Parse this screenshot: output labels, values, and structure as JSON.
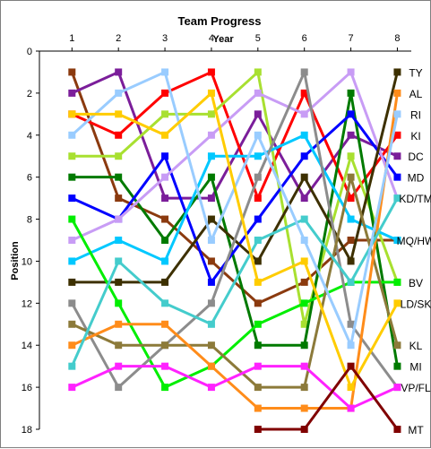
{
  "chart_data": {
    "type": "line",
    "title": "Team Progress",
    "xlabel": "Year",
    "ylabel": "Position",
    "x": [
      1,
      2,
      3,
      4,
      5,
      6,
      7,
      8
    ],
    "xlim": [
      0.3,
      8.3
    ],
    "ylim": [
      0,
      18
    ],
    "y_inverted": true,
    "yticks": [
      0,
      2,
      4,
      6,
      8,
      10,
      12,
      14,
      16,
      18
    ],
    "grid": false,
    "series_colors": {
      "dark-brown": "#8b3a0f",
      "purple": "#7b1e9a",
      "red": "#ff0000",
      "light-green": "#a8e030",
      "dark-green": "#007a00",
      "blue": "#0000ff",
      "lavender": "#c89cf5",
      "cyan": "#00c8ff",
      "dark-olive": "#3d3000",
      "green": "#00ee00",
      "grey": "#8c8c8c",
      "olive": "#8c7a3a",
      "orange": "#ff8c1a",
      "teal": "#44cccc",
      "magenta": "#ff22ff",
      "light-blue": "#99ccff",
      "gold": "#ffcc00",
      "maroon": "#800000"
    },
    "series": [
      {
        "name": "TY",
        "values": [
          1,
          7,
          8,
          10,
          12,
          11,
          9,
          9
        ],
        "color": "#8b3a0f"
      },
      {
        "name": "DC",
        "values": [
          2,
          1,
          7,
          7,
          3,
          7,
          4,
          5
        ],
        "color": "#7b1e9a"
      },
      {
        "name": "KI",
        "values": [
          3,
          4,
          2,
          1,
          7,
          2,
          7,
          4
        ],
        "color": "#ff0000"
      },
      {
        "name": "BV",
        "values": [
          5,
          5,
          3,
          3,
          1,
          13,
          5,
          11
        ],
        "color": "#a8e030"
      },
      {
        "name": "MI",
        "values": [
          6,
          6,
          9,
          6,
          14,
          14,
          2,
          15
        ],
        "color": "#007a00"
      },
      {
        "name": "MD",
        "values": [
          7,
          8,
          5,
          11,
          8,
          5,
          3,
          6
        ],
        "color": "#0000ff"
      },
      {
        "name": "RI",
        "values": [
          9,
          8,
          6,
          4,
          2,
          3,
          1,
          7
        ],
        "color": "#c89cf5"
      },
      {
        "name": "MQ/HW",
        "values": [
          10,
          9,
          10,
          5,
          5,
          4,
          8,
          9
        ],
        "color": "#00c8ff"
      },
      {
        "name": "TY",
        "values": [
          11,
          11,
          11,
          8,
          10,
          6,
          10,
          1
        ],
        "color": "#3d3000"
      },
      {
        "name": "LD/SK",
        "values": [
          8,
          12,
          16,
          15,
          13,
          12,
          11,
          11
        ],
        "color": "#00ee00"
      },
      {
        "name": "VP/FL",
        "values": [
          12,
          16,
          14,
          12,
          6,
          1,
          13,
          16
        ],
        "color": "#8c8c8c"
      },
      {
        "name": "KL",
        "values": [
          13,
          14,
          14,
          14,
          16,
          16,
          6,
          14
        ],
        "color": "#8c7a3a"
      },
      {
        "name": "AL",
        "values": [
          14,
          13,
          13,
          15,
          17,
          17,
          17,
          2
        ],
        "color": "#ff8c1a"
      },
      {
        "name": "KD/TM",
        "values": [
          15,
          10,
          12,
          13,
          9,
          8,
          11,
          7
        ],
        "color": "#44cccc"
      },
      {
        "name": "VP/FL",
        "values": [
          16,
          15,
          15,
          16,
          15,
          15,
          17,
          16
        ],
        "color": "#ff22ff"
      },
      {
        "name": "RI",
        "values": [
          4,
          2,
          1,
          9,
          4,
          9,
          14,
          3
        ],
        "color": "#99ccff"
      },
      {
        "name": "",
        "values": [
          3,
          3,
          4,
          2,
          11,
          10,
          16,
          12
        ],
        "color": "#ffcc00"
      },
      {
        "name": "MT",
        "values": [
          null,
          null,
          null,
          null,
          18,
          18,
          15,
          18
        ],
        "color": "#800000"
      }
    ],
    "end_labels": [
      {
        "text": "TY",
        "y": 1
      },
      {
        "text": "AL",
        "y": 2
      },
      {
        "text": "RI",
        "y": 3
      },
      {
        "text": "KI",
        "y": 4
      },
      {
        "text": "DC",
        "y": 5
      },
      {
        "text": "MD",
        "y": 6
      },
      {
        "text": "KD/TM",
        "y": 7
      },
      {
        "text": "MQ/HW",
        "y": 9
      },
      {
        "text": "BV",
        "y": 11
      },
      {
        "text": "LD/SK",
        "y": 12
      },
      {
        "text": "KL",
        "y": 14
      },
      {
        "text": "MI",
        "y": 15
      },
      {
        "text": "VP/FL",
        "y": 16
      },
      {
        "text": "MT",
        "y": 18
      }
    ]
  }
}
